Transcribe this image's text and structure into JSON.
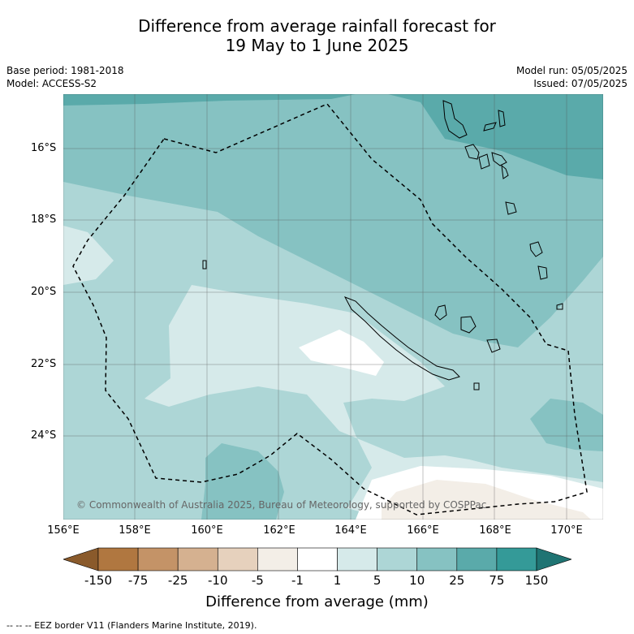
{
  "title_line1": "Difference from average rainfall forecast for",
  "title_line2": "19 May to 1 June 2025",
  "base_period": "Base period: 1981-2018",
  "model": "Model: ACCESS-S2",
  "model_run": "Model run: 05/05/2025",
  "issued": "Issued: 07/05/2025",
  "copyright": "© Commonwealth of Australia 2025, Bureau of Meteorology, supported by COSPPac",
  "lat_labels": [
    "16°S",
    "18°S",
    "20°S",
    "22°S",
    "24°S"
  ],
  "lon_labels": [
    "156°E",
    "158°E",
    "160°E",
    "162°E",
    "164°E",
    "166°E",
    "168°E",
    "170°E"
  ],
  "colorbar": {
    "title": "Difference from average (mm)",
    "ticks": [
      "-150",
      "-75",
      "-25",
      "-10",
      "-5",
      "-1",
      "1",
      "5",
      "10",
      "25",
      "75",
      "150"
    ],
    "colors": [
      "#8a5a2b",
      "#b07740",
      "#c49367",
      "#d5b190",
      "#e6d1bd",
      "#f3eee7",
      "#ffffff",
      "#d6eaea",
      "#add6d6",
      "#86c2c2",
      "#5aaaaa",
      "#349a98",
      "#1f7473"
    ]
  },
  "footer": "-- -- -- EEZ border V11 (Flanders Marine Institute, 2019)."
}
